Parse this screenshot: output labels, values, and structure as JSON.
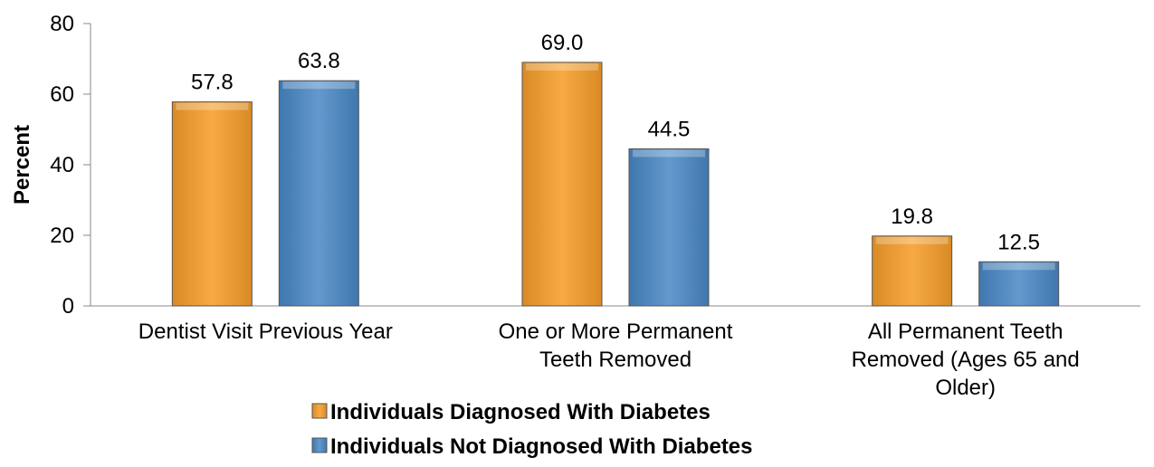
{
  "chart_data": {
    "type": "bar",
    "title": "",
    "xlabel": "",
    "ylabel": "Percent",
    "ylim": [
      0,
      80
    ],
    "yticks": [
      0,
      20,
      40,
      60,
      80
    ],
    "grid": false,
    "legend_position": "bottom",
    "categories": [
      [
        "Dentist Visit Previous Year"
      ],
      [
        "One or More Permanent",
        "Teeth Removed"
      ],
      [
        "All Permanent Teeth",
        "Removed (Ages 65 and",
        "Older)"
      ]
    ],
    "series": [
      {
        "name": "Individuals Diagnosed With Diabetes",
        "values": [
          57.8,
          69.0,
          19.8
        ],
        "labels": [
          "57.8",
          "69.0",
          "19.8"
        ],
        "color": "#F5A43B"
      },
      {
        "name": "Individuals Not Diagnosed With Diabetes",
        "values": [
          63.8,
          44.5,
          12.5
        ],
        "labels": [
          "63.8",
          "44.5",
          "12.5"
        ],
        "color": "#5B93C9"
      }
    ]
  }
}
